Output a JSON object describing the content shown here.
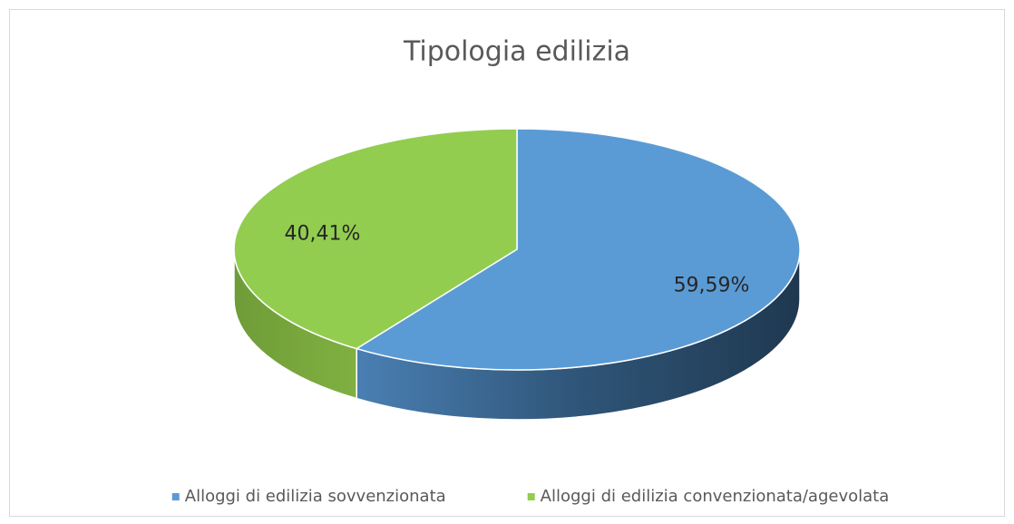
{
  "chart_data": {
    "type": "pie3d",
    "title": "Tipologia edilizia",
    "categories": [
      "Alloggi di edilizia sovvenzionata",
      "Alloggi di edilizia convenzionata/agevolata"
    ],
    "values": [
      59.59,
      40.41
    ],
    "value_labels": [
      "59,59%",
      "40,41%"
    ],
    "colors": [
      "#5b9bd5",
      "#92cd50"
    ],
    "legend": "bottom"
  }
}
